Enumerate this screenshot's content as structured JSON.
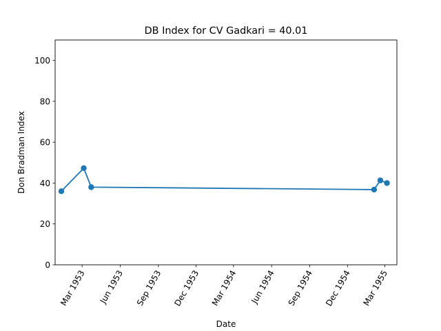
{
  "chart_data": {
    "type": "line",
    "title": "DB Index for CV Gadkari = 40.01",
    "xlabel": "Date",
    "ylabel": "Don Bradman Index",
    "xlim": [
      "1952-12-26",
      "1955-03-30"
    ],
    "ylim": [
      0,
      110
    ],
    "x_ticks": [
      {
        "date": "1953-03-01",
        "label": "Mar 1953"
      },
      {
        "date": "1953-06-01",
        "label": "Jun 1953"
      },
      {
        "date": "1953-09-01",
        "label": "Sep 1953"
      },
      {
        "date": "1953-12-01",
        "label": "Dec 1953"
      },
      {
        "date": "1954-03-01",
        "label": "Mar 1954"
      },
      {
        "date": "1954-06-01",
        "label": "Jun 1954"
      },
      {
        "date": "1954-09-01",
        "label": "Sep 1954"
      },
      {
        "date": "1954-12-01",
        "label": "Dec 1954"
      },
      {
        "date": "1955-03-01",
        "label": "Mar 1955"
      }
    ],
    "y_ticks": [
      0,
      20,
      40,
      60,
      80,
      100
    ],
    "grid": false,
    "series": [
      {
        "color": "#1f77b4",
        "marker": "circle",
        "x": [
          "1953-01-10",
          "1953-03-05",
          "1953-03-23",
          "1955-02-03",
          "1955-02-18",
          "1955-03-06"
        ],
        "y": [
          36.0,
          47.3,
          38.0,
          36.8,
          41.3,
          40.0
        ]
      }
    ]
  }
}
